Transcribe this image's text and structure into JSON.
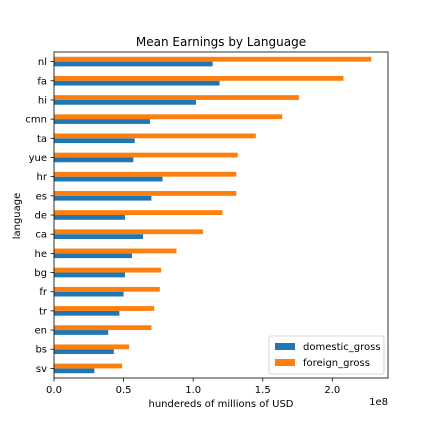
{
  "chart_data": {
    "type": "bar",
    "orientation": "horizontal",
    "title": "Mean Earnings by Language",
    "xlabel": "hundereds of millions of USD",
    "ylabel": "language",
    "x_offset_text": "1e8",
    "xlim": [
      0,
      2.4
    ],
    "x_ticks": [
      0.0,
      0.5,
      1.0,
      1.5,
      2.0
    ],
    "x_tick_labels": [
      "0.0",
      "0.5",
      "1.0",
      "1.5",
      "2.0"
    ],
    "categories": [
      "nl",
      "fa",
      "hi",
      "cmn",
      "ta",
      "yue",
      "hr",
      "es",
      "de",
      "ca",
      "he",
      "bg",
      "fr",
      "tr",
      "en",
      "bs",
      "sv"
    ],
    "series": [
      {
        "name": "domestic_gross",
        "color": "#1f77b4",
        "values": [
          1.14,
          1.19,
          1.02,
          0.69,
          0.58,
          0.57,
          0.78,
          0.7,
          0.51,
          0.64,
          0.56,
          0.51,
          0.5,
          0.47,
          0.39,
          0.43,
          0.29
        ]
      },
      {
        "name": "foreign_gross",
        "color": "#ff7f0e",
        "values": [
          2.28,
          2.08,
          1.76,
          1.64,
          1.45,
          1.32,
          1.31,
          1.31,
          1.21,
          1.07,
          0.88,
          0.77,
          0.76,
          0.72,
          0.7,
          0.54,
          0.49
        ]
      }
    ],
    "grid": false,
    "legend_position": "lower-right"
  }
}
